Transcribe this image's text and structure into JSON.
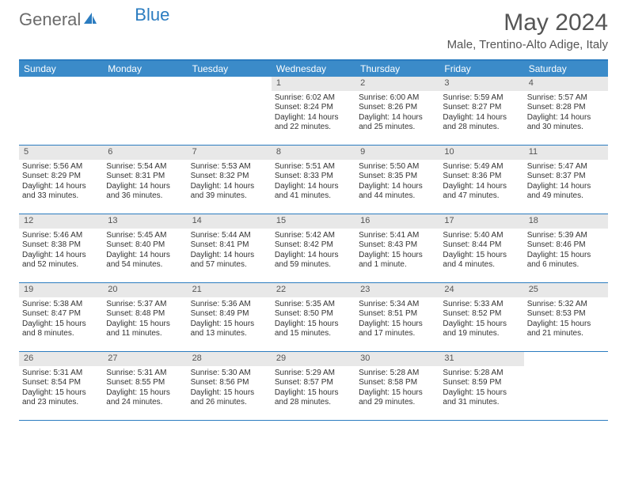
{
  "logo": {
    "text1": "General",
    "text2": "Blue"
  },
  "title": "May 2024",
  "location": "Male, Trentino-Alto Adige, Italy",
  "colors": {
    "header_bg": "#3b8bc9",
    "border": "#2b7cc0",
    "daynum_bg": "#e8e8e8",
    "text": "#333333",
    "logo_gray": "#6b6b6b",
    "logo_blue": "#2b7cc0"
  },
  "weekdays": [
    "Sunday",
    "Monday",
    "Tuesday",
    "Wednesday",
    "Thursday",
    "Friday",
    "Saturday"
  ],
  "weeks": [
    [
      {
        "empty": true
      },
      {
        "empty": true
      },
      {
        "empty": true
      },
      {
        "num": "1",
        "sunrise": "Sunrise: 6:02 AM",
        "sunset": "Sunset: 8:24 PM",
        "daylight": "Daylight: 14 hours and 22 minutes."
      },
      {
        "num": "2",
        "sunrise": "Sunrise: 6:00 AM",
        "sunset": "Sunset: 8:26 PM",
        "daylight": "Daylight: 14 hours and 25 minutes."
      },
      {
        "num": "3",
        "sunrise": "Sunrise: 5:59 AM",
        "sunset": "Sunset: 8:27 PM",
        "daylight": "Daylight: 14 hours and 28 minutes."
      },
      {
        "num": "4",
        "sunrise": "Sunrise: 5:57 AM",
        "sunset": "Sunset: 8:28 PM",
        "daylight": "Daylight: 14 hours and 30 minutes."
      }
    ],
    [
      {
        "num": "5",
        "sunrise": "Sunrise: 5:56 AM",
        "sunset": "Sunset: 8:29 PM",
        "daylight": "Daylight: 14 hours and 33 minutes."
      },
      {
        "num": "6",
        "sunrise": "Sunrise: 5:54 AM",
        "sunset": "Sunset: 8:31 PM",
        "daylight": "Daylight: 14 hours and 36 minutes."
      },
      {
        "num": "7",
        "sunrise": "Sunrise: 5:53 AM",
        "sunset": "Sunset: 8:32 PM",
        "daylight": "Daylight: 14 hours and 39 minutes."
      },
      {
        "num": "8",
        "sunrise": "Sunrise: 5:51 AM",
        "sunset": "Sunset: 8:33 PM",
        "daylight": "Daylight: 14 hours and 41 minutes."
      },
      {
        "num": "9",
        "sunrise": "Sunrise: 5:50 AM",
        "sunset": "Sunset: 8:35 PM",
        "daylight": "Daylight: 14 hours and 44 minutes."
      },
      {
        "num": "10",
        "sunrise": "Sunrise: 5:49 AM",
        "sunset": "Sunset: 8:36 PM",
        "daylight": "Daylight: 14 hours and 47 minutes."
      },
      {
        "num": "11",
        "sunrise": "Sunrise: 5:47 AM",
        "sunset": "Sunset: 8:37 PM",
        "daylight": "Daylight: 14 hours and 49 minutes."
      }
    ],
    [
      {
        "num": "12",
        "sunrise": "Sunrise: 5:46 AM",
        "sunset": "Sunset: 8:38 PM",
        "daylight": "Daylight: 14 hours and 52 minutes."
      },
      {
        "num": "13",
        "sunrise": "Sunrise: 5:45 AM",
        "sunset": "Sunset: 8:40 PM",
        "daylight": "Daylight: 14 hours and 54 minutes."
      },
      {
        "num": "14",
        "sunrise": "Sunrise: 5:44 AM",
        "sunset": "Sunset: 8:41 PM",
        "daylight": "Daylight: 14 hours and 57 minutes."
      },
      {
        "num": "15",
        "sunrise": "Sunrise: 5:42 AM",
        "sunset": "Sunset: 8:42 PM",
        "daylight": "Daylight: 14 hours and 59 minutes."
      },
      {
        "num": "16",
        "sunrise": "Sunrise: 5:41 AM",
        "sunset": "Sunset: 8:43 PM",
        "daylight": "Daylight: 15 hours and 1 minute."
      },
      {
        "num": "17",
        "sunrise": "Sunrise: 5:40 AM",
        "sunset": "Sunset: 8:44 PM",
        "daylight": "Daylight: 15 hours and 4 minutes."
      },
      {
        "num": "18",
        "sunrise": "Sunrise: 5:39 AM",
        "sunset": "Sunset: 8:46 PM",
        "daylight": "Daylight: 15 hours and 6 minutes."
      }
    ],
    [
      {
        "num": "19",
        "sunrise": "Sunrise: 5:38 AM",
        "sunset": "Sunset: 8:47 PM",
        "daylight": "Daylight: 15 hours and 8 minutes."
      },
      {
        "num": "20",
        "sunrise": "Sunrise: 5:37 AM",
        "sunset": "Sunset: 8:48 PM",
        "daylight": "Daylight: 15 hours and 11 minutes."
      },
      {
        "num": "21",
        "sunrise": "Sunrise: 5:36 AM",
        "sunset": "Sunset: 8:49 PM",
        "daylight": "Daylight: 15 hours and 13 minutes."
      },
      {
        "num": "22",
        "sunrise": "Sunrise: 5:35 AM",
        "sunset": "Sunset: 8:50 PM",
        "daylight": "Daylight: 15 hours and 15 minutes."
      },
      {
        "num": "23",
        "sunrise": "Sunrise: 5:34 AM",
        "sunset": "Sunset: 8:51 PM",
        "daylight": "Daylight: 15 hours and 17 minutes."
      },
      {
        "num": "24",
        "sunrise": "Sunrise: 5:33 AM",
        "sunset": "Sunset: 8:52 PM",
        "daylight": "Daylight: 15 hours and 19 minutes."
      },
      {
        "num": "25",
        "sunrise": "Sunrise: 5:32 AM",
        "sunset": "Sunset: 8:53 PM",
        "daylight": "Daylight: 15 hours and 21 minutes."
      }
    ],
    [
      {
        "num": "26",
        "sunrise": "Sunrise: 5:31 AM",
        "sunset": "Sunset: 8:54 PM",
        "daylight": "Daylight: 15 hours and 23 minutes."
      },
      {
        "num": "27",
        "sunrise": "Sunrise: 5:31 AM",
        "sunset": "Sunset: 8:55 PM",
        "daylight": "Daylight: 15 hours and 24 minutes."
      },
      {
        "num": "28",
        "sunrise": "Sunrise: 5:30 AM",
        "sunset": "Sunset: 8:56 PM",
        "daylight": "Daylight: 15 hours and 26 minutes."
      },
      {
        "num": "29",
        "sunrise": "Sunrise: 5:29 AM",
        "sunset": "Sunset: 8:57 PM",
        "daylight": "Daylight: 15 hours and 28 minutes."
      },
      {
        "num": "30",
        "sunrise": "Sunrise: 5:28 AM",
        "sunset": "Sunset: 8:58 PM",
        "daylight": "Daylight: 15 hours and 29 minutes."
      },
      {
        "num": "31",
        "sunrise": "Sunrise: 5:28 AM",
        "sunset": "Sunset: 8:59 PM",
        "daylight": "Daylight: 15 hours and 31 minutes."
      },
      {
        "empty": true
      }
    ]
  ]
}
